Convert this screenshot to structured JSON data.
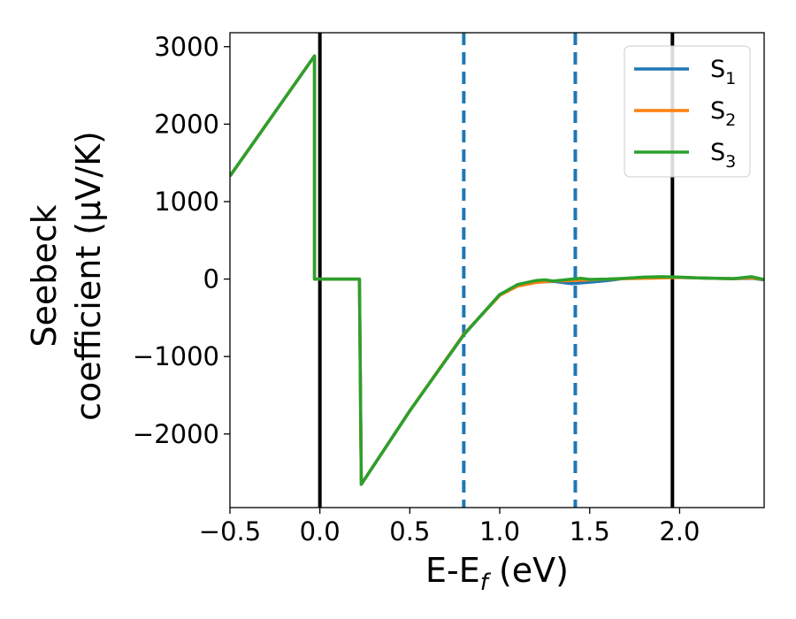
{
  "chart_data": {
    "type": "line",
    "xlabel": {
      "main": "E-E",
      "sub": "f",
      "tail": " (eV)"
    },
    "ylabel": {
      "line1": "Seebeck",
      "line2": "coefficient  (μV/K)"
    },
    "xlim": [
      -0.5,
      2.47
    ],
    "ylim": [
      -2950,
      3180
    ],
    "xticks": [
      -0.5,
      0.0,
      0.5,
      1.0,
      1.5,
      2.0
    ],
    "xtick_labels": [
      "−0.5",
      "0.0",
      "0.5",
      "1.0",
      "1.5",
      "2.0"
    ],
    "yticks": [
      -2000,
      -1000,
      0,
      1000,
      2000,
      3000
    ],
    "ytick_labels": [
      "−2000",
      "−1000",
      "0",
      "1000",
      "2000",
      "3000"
    ],
    "grid": false,
    "legend_position": "top-right",
    "vertical_lines": [
      {
        "x": 0.0,
        "style": "solid",
        "color": "#000000"
      },
      {
        "x": 1.96,
        "style": "solid",
        "color": "#000000"
      },
      {
        "x": 0.8,
        "style": "dashed",
        "color": "#1f77b4"
      },
      {
        "x": 1.42,
        "style": "dashed",
        "color": "#1f77b4"
      }
    ],
    "series": [
      {
        "name": "S",
        "sub": "1",
        "color": "#1f77b4",
        "points": [
          [
            -0.5,
            1330
          ],
          [
            -0.03,
            2880
          ],
          [
            -0.03,
            0
          ],
          [
            0.22,
            0
          ],
          [
            0.23,
            -2650
          ],
          [
            0.5,
            -1700
          ],
          [
            0.8,
            -720
          ],
          [
            1.0,
            -200
          ],
          [
            1.1,
            -80
          ],
          [
            1.2,
            -40
          ],
          [
            1.3,
            -30
          ],
          [
            1.4,
            -60
          ],
          [
            1.5,
            -40
          ],
          [
            1.6,
            -20
          ],
          [
            1.7,
            10
          ],
          [
            1.8,
            20
          ],
          [
            1.9,
            25
          ],
          [
            2.0,
            20
          ],
          [
            2.1,
            15
          ],
          [
            2.2,
            10
          ],
          [
            2.3,
            5
          ],
          [
            2.4,
            10
          ],
          [
            2.47,
            -10
          ]
        ]
      },
      {
        "name": "S",
        "sub": "2",
        "color": "#ff7f0e",
        "points": [
          [
            -0.5,
            1330
          ],
          [
            -0.03,
            2880
          ],
          [
            -0.03,
            0
          ],
          [
            0.22,
            0
          ],
          [
            0.23,
            -2650
          ],
          [
            0.5,
            -1700
          ],
          [
            0.8,
            -710
          ],
          [
            1.0,
            -210
          ],
          [
            1.1,
            -90
          ],
          [
            1.2,
            -45
          ],
          [
            1.3,
            -25
          ],
          [
            1.4,
            -20
          ],
          [
            1.5,
            -10
          ],
          [
            1.6,
            0
          ],
          [
            1.7,
            5
          ],
          [
            1.8,
            10
          ],
          [
            1.9,
            15
          ],
          [
            2.0,
            20
          ],
          [
            2.1,
            15
          ],
          [
            2.2,
            10
          ],
          [
            2.3,
            5
          ],
          [
            2.4,
            15
          ],
          [
            2.47,
            -5
          ]
        ]
      },
      {
        "name": "S",
        "sub": "3",
        "color": "#2ca02c",
        "points": [
          [
            -0.5,
            1330
          ],
          [
            -0.03,
            2880
          ],
          [
            -0.03,
            0
          ],
          [
            0.22,
            0
          ],
          [
            0.23,
            -2650
          ],
          [
            0.5,
            -1700
          ],
          [
            0.8,
            -720
          ],
          [
            1.0,
            -200
          ],
          [
            1.1,
            -70
          ],
          [
            1.2,
            -20
          ],
          [
            1.25,
            -10
          ],
          [
            1.3,
            -25
          ],
          [
            1.4,
            0
          ],
          [
            1.45,
            10
          ],
          [
            1.5,
            -5
          ],
          [
            1.6,
            0
          ],
          [
            1.7,
            10
          ],
          [
            1.8,
            25
          ],
          [
            1.9,
            30
          ],
          [
            2.0,
            25
          ],
          [
            2.1,
            15
          ],
          [
            2.2,
            10
          ],
          [
            2.3,
            5
          ],
          [
            2.4,
            30
          ],
          [
            2.47,
            -5
          ]
        ]
      }
    ]
  }
}
